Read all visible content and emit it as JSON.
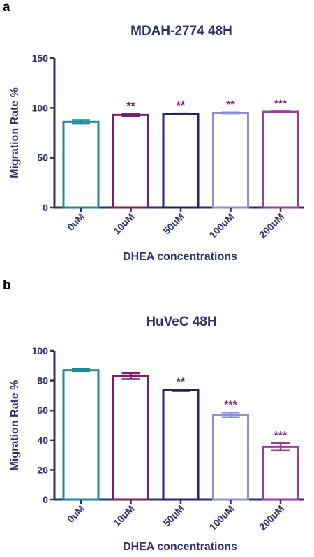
{
  "chart_data": [
    {
      "type": "bar",
      "panel_label": "a",
      "title": "MDAH-2774 48H",
      "xlabel": "DHEA concentrations",
      "ylabel": "Migration Rate %",
      "ylim": [
        0,
        150
      ],
      "yticks": [
        "0",
        "50",
        "100",
        "150"
      ],
      "categories": [
        "0uM",
        "10uM",
        "50uM",
        "100uM",
        "200uM"
      ],
      "values": [
        86,
        93,
        94,
        95,
        96
      ],
      "errors": [
        2,
        1,
        0.5,
        0.5,
        0.5
      ],
      "significance": [
        "",
        "**",
        "**",
        "**",
        "***"
      ],
      "colors": [
        "#1e8a96",
        "#7b1e6e",
        "#232466",
        "#8f8fcf",
        "#9c3d9c"
      ],
      "grid": false
    },
    {
      "type": "bar",
      "panel_label": "b",
      "title": "HuVeC 48H",
      "xlabel": "DHEA concentrations",
      "ylabel": "Migration Rate %",
      "ylim": [
        0,
        100
      ],
      "yticks": [
        "0",
        "20",
        "40",
        "60",
        "80",
        "100"
      ],
      "categories": [
        "0uM",
        "10uM",
        "50uM",
        "100uM",
        "200uM"
      ],
      "values": [
        87,
        83,
        73.5,
        57,
        35.5
      ],
      "errors": [
        1,
        2,
        0.5,
        1.5,
        2.5
      ],
      "significance": [
        "",
        "",
        "**",
        "***",
        "***"
      ],
      "colors": [
        "#1e8a96",
        "#7b1e6e",
        "#232466",
        "#8f8fcf",
        "#9c3d9c"
      ],
      "grid": false
    }
  ]
}
